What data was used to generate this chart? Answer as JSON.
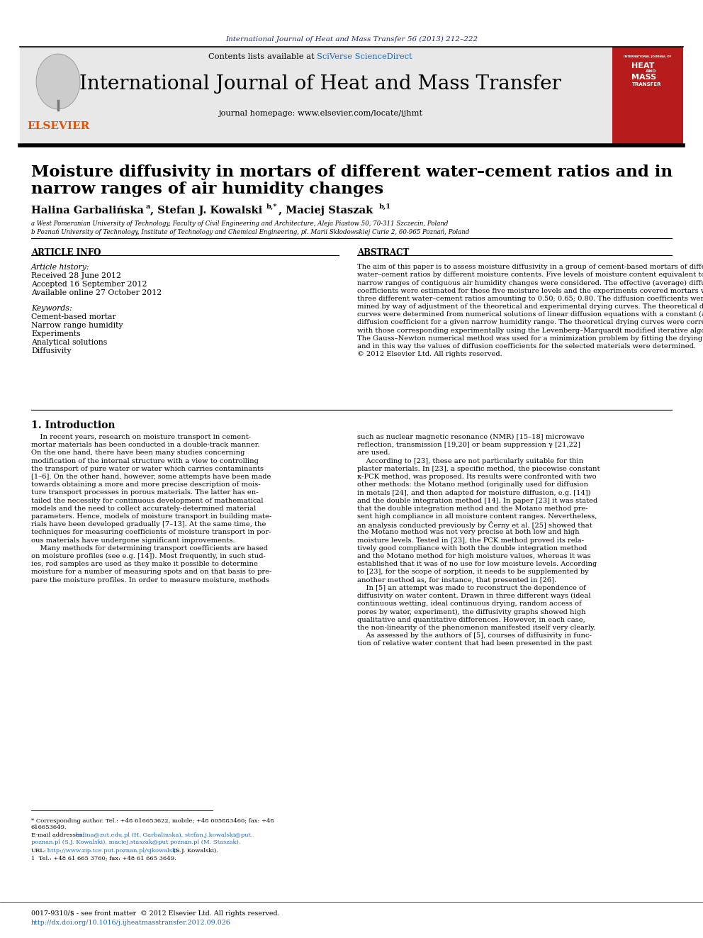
{
  "page_bg": "#ffffff",
  "top_journal_ref": "International Journal of Heat and Mass Transfer 56 (2013) 212–222",
  "top_journal_ref_color": "#1a237e",
  "header_bg": "#e8e8e8",
  "header_sciverse_color": "#1565c0",
  "header_journal_title": "International Journal of Heat and Mass Transfer",
  "header_homepage": "journal homepage: www.elsevier.com/locate/ijhmt",
  "elsevier_color": "#e65100",
  "red_cover_bg": "#b71c1c",
  "article_title_line1": "Moisture diffusivity in mortars of different water–cement ratios and in",
  "article_title_line2": "narrow ranges of air humidity changes",
  "affil_a": "a West Pomeranian University of Technology, Faculty of Civil Engineering and Architecture, Aleja Piastow 50, 70-311 Szczecin, Poland",
  "affil_b": "b Poznań University of Technology, Institute of Technology and Chemical Engineering, pl. Marii Skłodowskiej Curie 2, 60-965 Poznań, Poland",
  "article_info_title": "ARTICLE INFO",
  "article_history_title": "Article history:",
  "received": "Received 28 June 2012",
  "accepted": "Accepted 16 September 2012",
  "available": "Available online 27 October 2012",
  "keywords_title": "Keywords:",
  "keywords": [
    "Cement-based mortar",
    "Narrow range humidity",
    "Experiments",
    "Analytical solutions",
    "Diffusivity"
  ],
  "abstract_title": "ABSTRACT",
  "abstract_lines": [
    "The aim of this paper is to assess moisture diffusivity in a group of cement-based mortars of different",
    "water–cement ratios by different moisture contents. Five levels of moisture content equivalent to five",
    "narrow ranges of contiguous air humidity changes were considered. The effective (average) diffusion",
    "coefficients were estimated for these five moisture levels and the experiments covered mortars with",
    "three different water–cement ratios amounting to 0.50; 0.65; 0.80. The diffusion coefficients were deter-",
    "mined by way of adjustment of the theoretical and experimental drying curves. The theoretical drying",
    "curves were determined from numerical solutions of linear diffusion equations with a constant (average)",
    "diffusion coefficient for a given narrow humidity range. The theoretical drying curves were correlated",
    "with those corresponding experimentally using the Levenberg–Marquardt modified iterative algorithm.",
    "The Gauss–Newton numerical method was used for a minimization problem by fitting the drying curves,",
    "and in this way the values of diffusion coefficients for the selected materials were determined.",
    "© 2012 Elsevier Ltd. All rights reserved."
  ],
  "section1_title": "1. Introduction",
  "intro_col1_lines": [
    "    In recent years, research on moisture transport in cement-",
    "mortar materials has been conducted in a double-track manner.",
    "On the one hand, there have been many studies concerning",
    "modification of the internal structure with a view to controlling",
    "the transport of pure water or water which carries contaminants",
    "[1–6]. On the other hand, however, some attempts have been made",
    "towards obtaining a more and more precise description of mois-",
    "ture transport processes in porous materials. The latter has en-",
    "tailed the necessity for continuous development of mathematical",
    "models and the need to collect accurately-determined material",
    "parameters. Hence, models of moisture transport in building mate-",
    "rials have been developed gradually [7–13]. At the same time, the",
    "techniques for measuring coefficients of moisture transport in por-",
    "ous materials have undergone significant improvements.",
    "    Many methods for determining transport coefficients are based",
    "on moisture profiles (see e.g. [14]). Most frequently, in such stud-",
    "ies, rod samples are used as they make it possible to determine",
    "moisture for a number of measuring spots and on that basis to pre-",
    "pare the moisture profiles. In order to measure moisture, methods"
  ],
  "intro_col2_lines": [
    "such as nuclear magnetic resonance (NMR) [15–18] microwave",
    "reflection, transmission [19,20] or beam suppression γ [21,22]",
    "are used.",
    "    According to [23], these are not particularly suitable for thin",
    "plaster materials. In [23], a specific method, the piecewise constant",
    "κ-PCK method, was proposed. Its results were confronted with two",
    "other methods: the Motano method (originally used for diffusion",
    "in metals [24], and then adapted for moisture diffusion, e.g. [14])",
    "and the double integration method [14]. In paper [23] it was stated",
    "that the double integration method and the Motano method pre-",
    "sent high compliance in all moisture content ranges. Nevertheless,",
    "an analysis conducted previously by Černy et al. [25] showed that",
    "the Motano method was not very precise at both low and high",
    "moisture levels. Tested in [23], the PCK method proved its rela-",
    "tively good compliance with both the double integration method",
    "and the Motano method for high moisture values, whereas it was",
    "established that it was of no use for low moisture levels. According",
    "to [23], for the scope of sorption, it needs to be supplemented by",
    "another method as, for instance, that presented in [26].",
    "    In [5] an attempt was made to reconstruct the dependence of",
    "diffusivity on water content. Drawn in three different ways (ideal",
    "continuous wetting, ideal continuous drying, random access of",
    "pores by water, experiment), the diffusivity graphs showed high",
    "qualitative and quantitative differences. However, in each case,",
    "the non-linearity of the phenomenon manifested itself very clearly.",
    "    As assessed by the authors of [5], courses of diffusivity in func-",
    "tion of relative water content that had been presented in the past"
  ],
  "footnote_star": "* Corresponding author. Tel.: +48 616653622, mobile; +48 605883460; fax: +48",
  "footnote_star2": "616653649.",
  "footnote_email_label": "E-mail addresses:",
  "footnote_email_body": " halina@zut.edu.pl (H. Garbalinska), stefan.j.kowalski@put.",
  "footnote_email_body2": "poznan.pl (S.J. Kowalski), maciej.staszak@put.poznan.pl (M. Staszak).",
  "footnote_url_label": "URL:",
  "footnote_url_link": " http://www.zip.tce.put.poznan.pl/sjkowalski",
  "footnote_url_tail": " (S.J. Kowalski).",
  "footnote_1": "1  Tel.: +48 61 665 3760; fax: +48 61 665 3649.",
  "footer_issn": "0017-9310/$ - see front matter  © 2012 Elsevier Ltd. All rights reserved.",
  "footer_doi": "http://dx.doi.org/10.1016/j.ijheatmasstransfer.2012.09.026",
  "link_color": "#1565c0"
}
